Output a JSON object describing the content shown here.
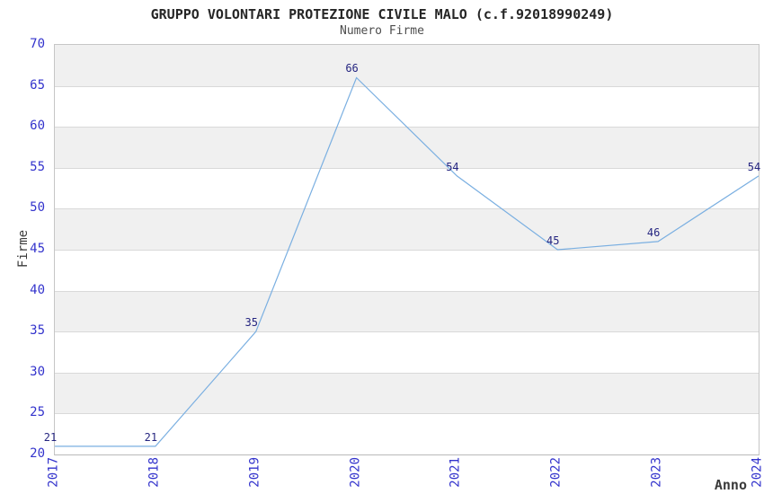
{
  "chart_data": {
    "type": "line",
    "title": "GRUPPO VOLONTARI PROTEZIONE CIVILE MALO (c.f.92018990249)",
    "subtitle": "Numero Firme",
    "xlabel": "Anno",
    "ylabel": "Firme",
    "categories": [
      "2017",
      "2018",
      "2019",
      "2020",
      "2021",
      "2022",
      "2023",
      "2024"
    ],
    "values": [
      21,
      21,
      35,
      66,
      54,
      45,
      46,
      54
    ],
    "data_labels": [
      "21",
      "21",
      "35",
      "66",
      "54",
      "45",
      "46",
      "54"
    ],
    "ylim": [
      20,
      70
    ],
    "ytick_step": 5,
    "yticks": [
      20,
      25,
      30,
      35,
      40,
      45,
      50,
      55,
      60,
      65,
      70
    ],
    "grid": "horizontal gridlines every 5 with alternating gray bands",
    "legend": "none",
    "colors": {
      "line": "#7aafe1",
      "data_label": "#252580",
      "tick_label": "#3333cc",
      "band_gray": "#f0f0f0",
      "gridline": "#d9d9d9",
      "axis_border": "#c6c6c6",
      "title": "#262626",
      "subtitle": "#4d4d4d",
      "axis_title": "#3a3a3a"
    }
  }
}
